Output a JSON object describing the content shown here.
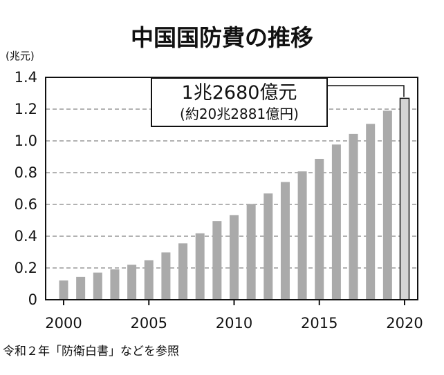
{
  "chart_data": {
    "type": "bar",
    "title": "中国国防費の推移",
    "unit_label": "(兆元)",
    "x": [
      2000,
      2001,
      2002,
      2003,
      2004,
      2005,
      2006,
      2007,
      2008,
      2009,
      2010,
      2011,
      2012,
      2013,
      2014,
      2015,
      2016,
      2017,
      2018,
      2019,
      2020
    ],
    "values": [
      0.121,
      0.144,
      0.171,
      0.191,
      0.22,
      0.248,
      0.298,
      0.355,
      0.418,
      0.495,
      0.533,
      0.603,
      0.669,
      0.741,
      0.808,
      0.887,
      0.977,
      1.044,
      1.107,
      1.19,
      1.268
    ],
    "x_tick_labels": [
      "2000",
      "2005",
      "2010",
      "2015",
      "2020"
    ],
    "y_tick_labels": [
      "0",
      "0.2",
      "0.4",
      "0.6",
      "0.8",
      "1.0",
      "1.2",
      "1.4"
    ],
    "ylim": [
      0,
      1.4
    ],
    "grid": true,
    "highlight_index": 20,
    "bar_color": "#aaaaaa",
    "highlight_color": "#d4d4d4",
    "annotation": {
      "main": "1兆2680億元",
      "sub": "(約20兆2881億円)"
    },
    "source": "令和２年「防衛白書」などを参照"
  }
}
